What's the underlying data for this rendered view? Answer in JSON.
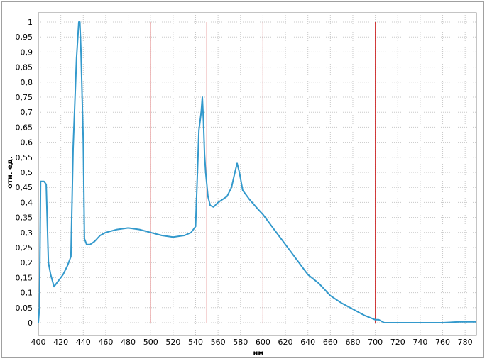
{
  "chart_data": {
    "type": "line",
    "title": "",
    "xlabel": "нм",
    "ylabel": "отн. ед.",
    "xlim": [
      400,
      790
    ],
    "ylim": [
      0,
      1
    ],
    "xticks": [
      400,
      420,
      440,
      460,
      480,
      500,
      520,
      540,
      560,
      580,
      600,
      620,
      640,
      660,
      680,
      700,
      720,
      740,
      760,
      780
    ],
    "yticks": [
      0,
      0.05,
      0.1,
      0.15,
      0.2,
      0.25,
      0.3,
      0.35,
      0.4,
      0.45,
      0.5,
      0.55,
      0.6,
      0.65,
      0.7,
      0.75,
      0.8,
      0.85,
      0.9,
      0.95,
      1
    ],
    "ytick_labels": [
      "0",
      "0,05",
      "0,1",
      "0,15",
      "0,2",
      "0,25",
      "0,3",
      "0,35",
      "0,4",
      "0,45",
      "0,5",
      "0,55",
      "0,6",
      "0,65",
      "0,7",
      "0,75",
      "0,8",
      "0,85",
      "0,9",
      "0,95",
      "1"
    ],
    "grid": true,
    "line_color": "#3399cc",
    "marker_color": "#cc2222",
    "vertical_markers": [
      500,
      550,
      600,
      700
    ],
    "series": [
      {
        "x": [
          400,
          401,
          402,
          405,
          407,
          409,
          411,
          414,
          418,
          422,
          426,
          429,
          431,
          434,
          436,
          437,
          438,
          440,
          441,
          443,
          446,
          450,
          455,
          460,
          470,
          480,
          490,
          500,
          510,
          520,
          530,
          536,
          540,
          543,
          545,
          546,
          547,
          548,
          549,
          550,
          551,
          553,
          556,
          560,
          564,
          568,
          572,
          575,
          577,
          579,
          582,
          588,
          595,
          600,
          610,
          620,
          630,
          640,
          650,
          660,
          670,
          680,
          690,
          700,
          703,
          708,
          720,
          740,
          760,
          775,
          790
        ],
        "y": [
          0.0,
          0.05,
          0.47,
          0.47,
          0.46,
          0.2,
          0.16,
          0.12,
          0.14,
          0.16,
          0.19,
          0.22,
          0.58,
          0.88,
          1.0,
          1.0,
          0.9,
          0.6,
          0.28,
          0.26,
          0.26,
          0.27,
          0.29,
          0.3,
          0.31,
          0.315,
          0.31,
          0.3,
          0.29,
          0.285,
          0.29,
          0.3,
          0.32,
          0.64,
          0.7,
          0.75,
          0.67,
          0.56,
          0.5,
          0.46,
          0.42,
          0.39,
          0.385,
          0.4,
          0.41,
          0.42,
          0.45,
          0.5,
          0.53,
          0.5,
          0.44,
          0.41,
          0.38,
          0.36,
          0.31,
          0.26,
          0.21,
          0.16,
          0.13,
          0.09,
          0.065,
          0.045,
          0.025,
          0.01,
          0.01,
          0.0,
          0.0,
          0.0,
          0.0,
          0.003,
          0.003
        ]
      }
    ]
  }
}
